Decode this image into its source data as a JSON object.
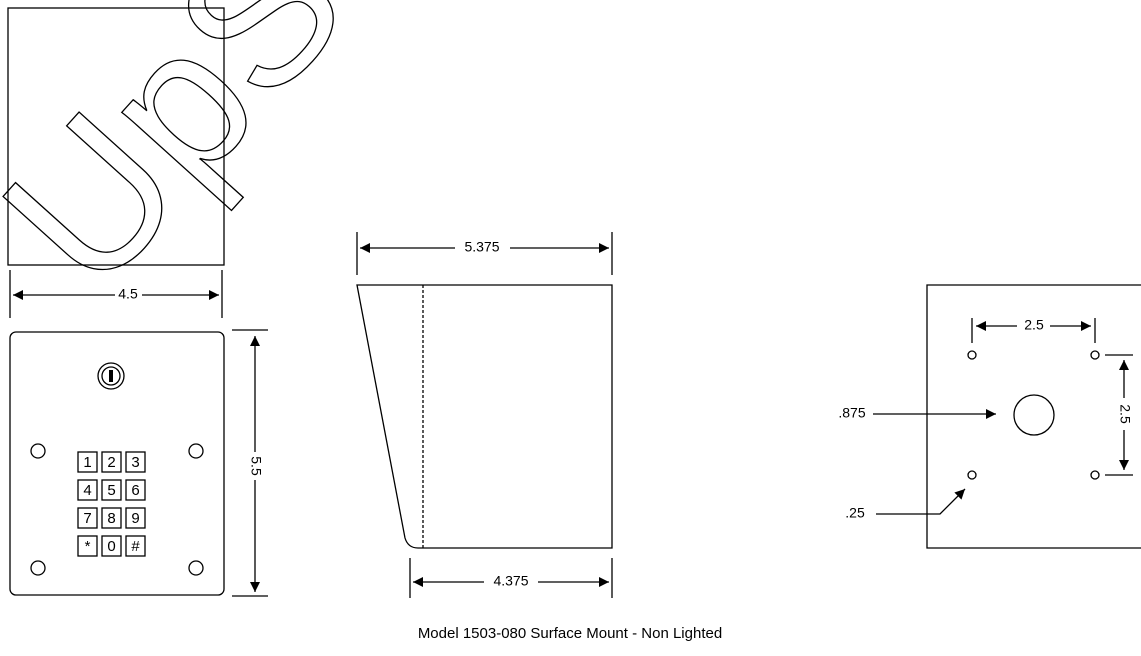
{
  "watermark": "UpSw",
  "front": {
    "width": "4.5",
    "height": "5.5",
    "keys": [
      "1",
      "2",
      "3",
      "4",
      "5",
      "6",
      "7",
      "8",
      "9",
      "*",
      "0",
      "#"
    ]
  },
  "side": {
    "top": "5.375",
    "bottom": "4.375"
  },
  "back": {
    "hole_spacing_x": "2.5",
    "hole_spacing_y": "2.5",
    "center_hole": ".875",
    "mount_hole": ".25"
  },
  "caption": "Model 1503-080 Surface Mount - Non Lighted"
}
